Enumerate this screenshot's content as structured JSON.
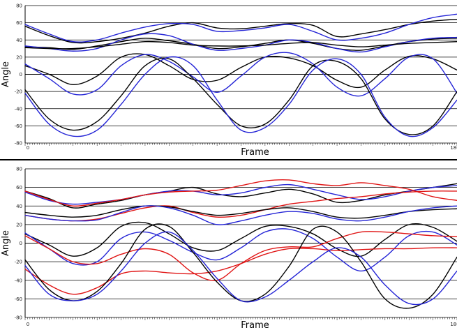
{
  "colors": {
    "black": "#000000",
    "blue": "#2424d6",
    "red": "#e01414",
    "grid": "#000000",
    "divider": "#000000"
  },
  "chart_data": [
    {
      "type": "line",
      "title": "",
      "xlabel": "Frame",
      "ylabel": "Angle",
      "xlim": [
        0,
        180
      ],
      "ylim": [
        -80,
        80
      ],
      "yticks": [
        80,
        60,
        40,
        20,
        0,
        -20,
        -40,
        -60,
        -80
      ],
      "xtick_labels": [
        "0",
        "180"
      ],
      "grid": true,
      "legend": "none",
      "series": [
        {
          "color": "black",
          "x": [
            0,
            10,
            20,
            30,
            40,
            50,
            60,
            70,
            80,
            90,
            100,
            110,
            120,
            130,
            140,
            150,
            160,
            170,
            180
          ],
          "y": [
            56,
            45,
            37,
            38,
            42,
            48,
            56,
            60,
            54,
            53,
            56,
            59,
            57,
            44,
            47,
            52,
            58,
            62,
            64
          ]
        },
        {
          "color": "blue",
          "x": [
            0,
            10,
            20,
            30,
            40,
            50,
            60,
            70,
            80,
            90,
            100,
            110,
            120,
            130,
            140,
            150,
            160,
            170,
            180
          ],
          "y": [
            58,
            47,
            38,
            40,
            48,
            55,
            59,
            58,
            50,
            51,
            54,
            58,
            50,
            40,
            42,
            48,
            58,
            66,
            70
          ]
        },
        {
          "color": "black",
          "x": [
            0,
            10,
            20,
            30,
            40,
            50,
            60,
            70,
            80,
            90,
            100,
            110,
            120,
            130,
            140,
            150,
            160,
            170,
            180
          ],
          "y": [
            32,
            31,
            29,
            33,
            38,
            42,
            39,
            35,
            30,
            32,
            36,
            40,
            36,
            30,
            28,
            33,
            38,
            41,
            42
          ]
        },
        {
          "color": "blue",
          "x": [
            0,
            10,
            20,
            30,
            40,
            50,
            60,
            70,
            80,
            90,
            100,
            110,
            120,
            130,
            140,
            150,
            160,
            170,
            180
          ],
          "y": [
            33,
            30,
            27,
            30,
            40,
            47,
            45,
            35,
            28,
            30,
            34,
            40,
            37,
            30,
            26,
            32,
            38,
            42,
            43
          ]
        },
        {
          "color": "black",
          "x": [
            0,
            10,
            20,
            30,
            40,
            50,
            60,
            70,
            80,
            90,
            100,
            110,
            120,
            130,
            140,
            150,
            160,
            170,
            180
          ],
          "y": [
            31,
            30,
            30,
            32,
            35,
            38,
            37,
            34,
            33,
            33,
            34,
            36,
            37,
            34,
            32,
            34,
            36,
            37,
            38
          ]
        },
        {
          "color": "black",
          "x": [
            0,
            10,
            20,
            30,
            40,
            50,
            60,
            70,
            80,
            90,
            100,
            110,
            120,
            130,
            140,
            150,
            160,
            170,
            180
          ],
          "y": [
            10,
            0,
            -12,
            -2,
            20,
            23,
            10,
            -6,
            -7,
            8,
            20,
            19,
            10,
            -7,
            -15,
            5,
            21,
            18,
            5
          ]
        },
        {
          "color": "blue",
          "x": [
            0,
            10,
            20,
            30,
            40,
            50,
            60,
            70,
            80,
            90,
            100,
            110,
            120,
            130,
            140,
            150,
            160,
            170,
            180
          ],
          "y": [
            12,
            -5,
            -23,
            -18,
            10,
            23,
            15,
            -3,
            -21,
            -2,
            20,
            25,
            12,
            -15,
            -25,
            -5,
            20,
            18,
            -22
          ]
        },
        {
          "color": "black",
          "x": [
            0,
            10,
            20,
            30,
            40,
            50,
            60,
            70,
            80,
            90,
            100,
            110,
            120,
            130,
            140,
            150,
            160,
            170,
            180
          ],
          "y": [
            -18,
            -52,
            -65,
            -55,
            -25,
            10,
            18,
            -5,
            -35,
            -60,
            -58,
            -30,
            10,
            15,
            -5,
            -52,
            -70,
            -60,
            -20
          ]
        },
        {
          "color": "blue",
          "x": [
            0,
            10,
            20,
            30,
            40,
            50,
            60,
            70,
            80,
            90,
            100,
            110,
            120,
            130,
            140,
            150,
            160,
            170,
            180
          ],
          "y": [
            -22,
            -58,
            -72,
            -65,
            -35,
            0,
            20,
            10,
            -30,
            -65,
            -62,
            -35,
            5,
            18,
            0,
            -50,
            -72,
            -62,
            -30
          ]
        }
      ]
    },
    {
      "type": "line",
      "title": "",
      "xlabel": "Frame",
      "ylabel": "Angle",
      "xlim": [
        0,
        180
      ],
      "ylim": [
        -80,
        80
      ],
      "yticks": [
        80,
        60,
        40,
        20,
        0,
        -20,
        -40,
        -60,
        -80
      ],
      "xtick_labels": [
        "0",
        "180"
      ],
      "grid": true,
      "legend": "none",
      "series": [
        {
          "color": "black",
          "x": [
            0,
            10,
            20,
            30,
            40,
            50,
            60,
            70,
            80,
            90,
            100,
            110,
            120,
            130,
            140,
            150,
            160,
            170,
            180
          ],
          "y": [
            56,
            48,
            38,
            42,
            46,
            52,
            56,
            60,
            53,
            50,
            54,
            58,
            53,
            44,
            46,
            52,
            56,
            60,
            64
          ]
        },
        {
          "color": "blue",
          "x": [
            0,
            10,
            20,
            30,
            40,
            50,
            60,
            70,
            80,
            90,
            100,
            110,
            120,
            130,
            140,
            150,
            160,
            170,
            180
          ],
          "y": [
            55,
            46,
            42,
            44,
            47,
            52,
            56,
            56,
            52,
            54,
            60,
            63,
            58,
            52,
            47,
            50,
            56,
            60,
            62
          ]
        },
        {
          "color": "red",
          "x": [
            0,
            10,
            20,
            30,
            40,
            50,
            60,
            70,
            80,
            90,
            100,
            110,
            120,
            130,
            140,
            150,
            160,
            170,
            180
          ],
          "y": [
            56,
            47,
            40,
            43,
            47,
            52,
            55,
            56,
            57,
            62,
            67,
            68,
            64,
            62,
            65,
            62,
            58,
            50,
            46
          ]
        },
        {
          "color": "red",
          "x": [
            0,
            10,
            20,
            30,
            40,
            50,
            60,
            70,
            80,
            90,
            100,
            110,
            120,
            130,
            140,
            150,
            160,
            170,
            180
          ],
          "y": [
            30,
            26,
            24,
            26,
            32,
            38,
            40,
            33,
            28,
            30,
            36,
            42,
            45,
            48,
            50,
            53,
            55,
            56,
            56
          ]
        },
        {
          "color": "black",
          "x": [
            0,
            10,
            20,
            30,
            40,
            50,
            60,
            70,
            80,
            90,
            100,
            110,
            120,
            130,
            140,
            150,
            160,
            170,
            180
          ],
          "y": [
            33,
            30,
            28,
            30,
            36,
            40,
            39,
            34,
            30,
            32,
            36,
            38,
            34,
            28,
            27,
            30,
            34,
            36,
            37
          ]
        },
        {
          "color": "blue",
          "x": [
            0,
            10,
            20,
            30,
            40,
            50,
            60,
            70,
            80,
            90,
            100,
            110,
            120,
            130,
            140,
            150,
            160,
            170,
            180
          ],
          "y": [
            30,
            26,
            24,
            25,
            33,
            40,
            38,
            30,
            20,
            24,
            30,
            34,
            32,
            26,
            24,
            28,
            34,
            38,
            40
          ]
        },
        {
          "color": "black",
          "x": [
            0,
            10,
            20,
            30,
            40,
            50,
            60,
            70,
            80,
            90,
            100,
            110,
            120,
            130,
            140,
            150,
            160,
            170,
            180
          ],
          "y": [
            10,
            -2,
            -14,
            -5,
            18,
            22,
            10,
            -5,
            -8,
            5,
            18,
            18,
            10,
            -6,
            -14,
            4,
            20,
            17,
            2
          ]
        },
        {
          "color": "blue",
          "x": [
            0,
            10,
            20,
            30,
            40,
            50,
            60,
            70,
            80,
            90,
            100,
            110,
            120,
            130,
            140,
            150,
            160,
            170,
            180
          ],
          "y": [
            11,
            -6,
            -22,
            -20,
            5,
            12,
            3,
            -10,
            -18,
            -5,
            12,
            15,
            5,
            -15,
            -30,
            -15,
            8,
            12,
            -2
          ]
        },
        {
          "color": "red",
          "x": [
            0,
            10,
            20,
            30,
            40,
            50,
            60,
            70,
            80,
            90,
            100,
            110,
            120,
            130,
            140,
            150,
            160,
            170,
            180
          ],
          "y": [
            8,
            -6,
            -20,
            -22,
            -12,
            -6,
            -12,
            -32,
            -40,
            -22,
            -8,
            -4,
            -4,
            5,
            12,
            12,
            10,
            8,
            7
          ]
        },
        {
          "color": "red",
          "x": [
            0,
            10,
            20,
            30,
            40,
            50,
            60,
            70,
            80,
            90,
            100,
            110,
            120,
            130,
            140,
            150,
            160,
            170,
            180
          ],
          "y": [
            -28,
            -45,
            -55,
            -48,
            -33,
            -30,
            -32,
            -33,
            -30,
            -22,
            -12,
            -6,
            -6,
            -8,
            -7,
            -6,
            -6,
            -5,
            -5
          ]
        },
        {
          "color": "black",
          "x": [
            0,
            10,
            20,
            30,
            40,
            50,
            60,
            70,
            80,
            90,
            100,
            110,
            120,
            130,
            140,
            150,
            160,
            170,
            180
          ],
          "y": [
            -18,
            -50,
            -62,
            -52,
            -22,
            15,
            18,
            -10,
            -42,
            -62,
            -55,
            -25,
            15,
            12,
            -20,
            -60,
            -70,
            -55,
            -15
          ]
        },
        {
          "color": "blue",
          "x": [
            0,
            10,
            20,
            30,
            40,
            50,
            60,
            70,
            80,
            90,
            100,
            110,
            120,
            130,
            140,
            150,
            160,
            170,
            180
          ],
          "y": [
            -24,
            -55,
            -62,
            -55,
            -30,
            0,
            12,
            -8,
            -38,
            -62,
            -58,
            -40,
            -20,
            -5,
            -15,
            -45,
            -65,
            -60,
            -30
          ]
        }
      ]
    }
  ]
}
